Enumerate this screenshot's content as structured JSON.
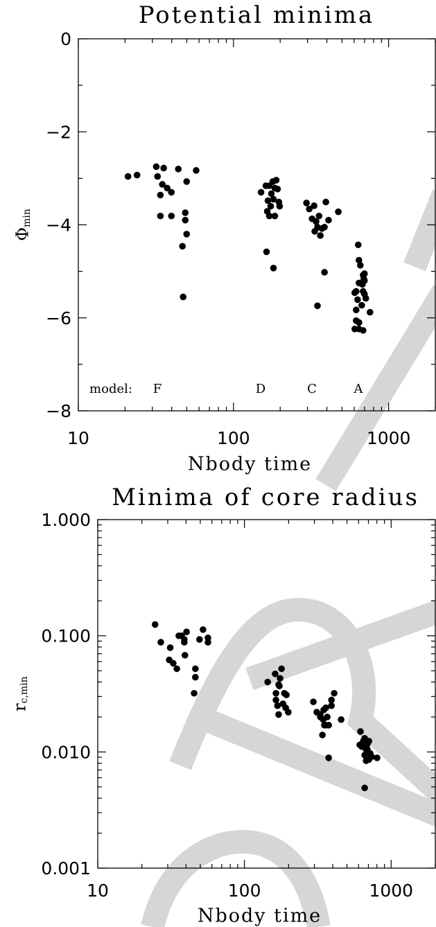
{
  "chart_data": [
    {
      "type": "scatter",
      "title": "Potential minima",
      "xlabel": "Nbody time",
      "ylabel": "Φ",
      "ylabel_sub": "min",
      "log_x": true,
      "log_y": false,
      "xlim": [
        10,
        2000
      ],
      "ylim": [
        -8,
        0
      ],
      "xticks": [
        10,
        100,
        1000
      ],
      "yticks": [
        {
          "value": -8,
          "label": "−8"
        },
        {
          "value": -6,
          "label": "−6"
        },
        {
          "value": -4,
          "label": "−4"
        },
        {
          "value": -2,
          "label": "−2"
        },
        0
      ],
      "x_minor_ticks": [
        20,
        30,
        40,
        50,
        60,
        70,
        80,
        90,
        200,
        300,
        400,
        500,
        600,
        700,
        800,
        900,
        2000
      ],
      "y_minor_ticks": [
        -7,
        -5,
        -3,
        -1
      ],
      "annotations": [
        "model:",
        "F",
        "D",
        "C",
        "A"
      ],
      "series": [
        {
          "color": "#000000",
          "x": [
            20.9,
            23.9,
            31.8,
            32.4,
            35.5,
            33.8,
            34.8,
            37.4,
            39.8,
            33.8,
            39.8,
            44.1,
            49.9,
            57.5,
            48.9,
            48.9,
            49.9,
            46.9,
            47.4,
            150.6,
            161.8,
            170.3,
            179.2,
            188.6,
            184.8,
            192.4,
            166.8,
            173.8,
            181.1,
            170.3,
            184.8,
            196.3,
            198.4,
            163.4,
            181.1,
            165.1,
            175.5,
            295.6,
            308,
            331,
            321,
            341,
            356,
            348,
            334,
            363,
            386,
            394,
            410,
            474,
            386,
            348,
            371,
            637,
            644,
            657,
            685,
            699,
            678,
            692,
            644,
            618,
            605,
            631,
            618,
            699,
            699,
            671,
            618,
            644,
            605,
            644,
            685,
            759,
            713,
            685
          ],
          "values": [
            -2.96,
            -2.93,
            -2.75,
            -2.96,
            -2.78,
            -3.36,
            -3.13,
            -3.21,
            -3.3,
            -3.81,
            -3.81,
            -2.8,
            -3.07,
            -2.83,
            -3.74,
            -3.9,
            -4.2,
            -4.46,
            -5.55,
            -3.3,
            -3.16,
            -3.16,
            -3.07,
            -3.04,
            -3.21,
            -3.23,
            -3.48,
            -3.6,
            -3.45,
            -3.81,
            -3.81,
            -3.51,
            -3.6,
            -4.58,
            -4.93,
            -3.71,
            -3.33,
            -3.53,
            -3.66,
            -3.59,
            -3.87,
            -3.93,
            -3.81,
            -4.05,
            -4.14,
            -4.23,
            -4.05,
            -3.51,
            -3.9,
            -3.72,
            -5.02,
            -5.74,
            -4.08,
            -4.43,
            -4.76,
            -4.87,
            -5.08,
            -5.05,
            -5.28,
            -5.16,
            -5.25,
            -5.43,
            -5.46,
            -5.61,
            -5.83,
            -5.2,
            -5.49,
            -5.73,
            -6.06,
            -6.1,
            -6.24,
            -6.24,
            -6.27,
            -5.88,
            -5.58,
            -5.43
          ]
        }
      ]
    },
    {
      "type": "scatter",
      "title": "Minima of core radius",
      "xlabel": "Nbody time",
      "ylabel": "r",
      "ylabel_sub": "c,min",
      "log_x": true,
      "log_y": true,
      "xlim": [
        10,
        2000
      ],
      "ylim": [
        0.001,
        1
      ],
      "xticks": [
        10,
        100,
        1000
      ],
      "yticks": [
        {
          "value": 0.001,
          "label": "0.001"
        },
        {
          "value": 0.01,
          "label": "0.010"
        },
        {
          "value": 0.1,
          "label": "0.100"
        },
        {
          "value": 1,
          "label": "1.000"
        }
      ],
      "x_minor_ticks": [
        20,
        30,
        40,
        50,
        60,
        70,
        80,
        90,
        200,
        300,
        400,
        500,
        600,
        700,
        800,
        900,
        2000
      ],
      "y_minor_ticks": [
        0.002,
        0.003,
        0.004,
        0.005,
        0.006,
        0.007,
        0.008,
        0.009,
        0.02,
        0.03,
        0.04,
        0.05,
        0.06,
        0.07,
        0.08,
        0.09,
        0.2,
        0.3,
        0.4,
        0.5,
        0.6,
        0.7,
        0.8,
        0.9
      ],
      "series": [
        {
          "color": "#000000",
          "x": [
            24.6,
            26.9,
            31.2,
            30.7,
            32.7,
            34.6,
            35.7,
            37.3,
            38.9,
            40.3,
            38.9,
            39.3,
            46.3,
            46.3,
            45.4,
            52.2,
            49.4,
            56.4,
            56.4,
            144,
            162,
            173,
            175,
            179,
            164,
            168,
            171,
            187,
            183,
            191,
            193,
            199,
            164,
            171,
            295,
            311,
            329,
            347,
            359,
            367,
            351,
            359,
            340,
            375,
            392,
            409,
            392,
            375,
            456,
            344,
            329,
            618,
            611,
            632,
            646,
            660,
            675,
            689,
            660,
            705,
            675,
            720,
            736,
            675,
            660,
            802,
            689,
            705
          ],
          "values": [
            0.125,
            0.088,
            0.079,
            0.062,
            0.058,
            0.052,
            0.1,
            0.1,
            0.093,
            0.108,
            0.088,
            0.068,
            0.052,
            0.044,
            0.032,
            0.113,
            0.093,
            0.096,
            0.088,
            0.04,
            0.047,
            0.037,
            0.043,
            0.052,
            0.032,
            0.025,
            0.021,
            0.032,
            0.026,
            0.024,
            0.031,
            0.022,
            0.028,
            0.038,
            0.027,
            0.022,
            0.021,
            0.023,
            0.024,
            0.02,
            0.017,
            0.017,
            0.014,
            0.017,
            0.028,
            0.032,
            0.025,
            0.0089,
            0.019,
            0.019,
            0.02,
            0.015,
            0.0115,
            0.0111,
            0.0124,
            0.0131,
            0.0114,
            0.0105,
            0.0094,
            0.0086,
            0.0084,
            0.0097,
            0.0091,
            0.0105,
            0.0049,
            0.0089,
            0.0117,
            0.0124
          ]
        }
      ]
    }
  ]
}
